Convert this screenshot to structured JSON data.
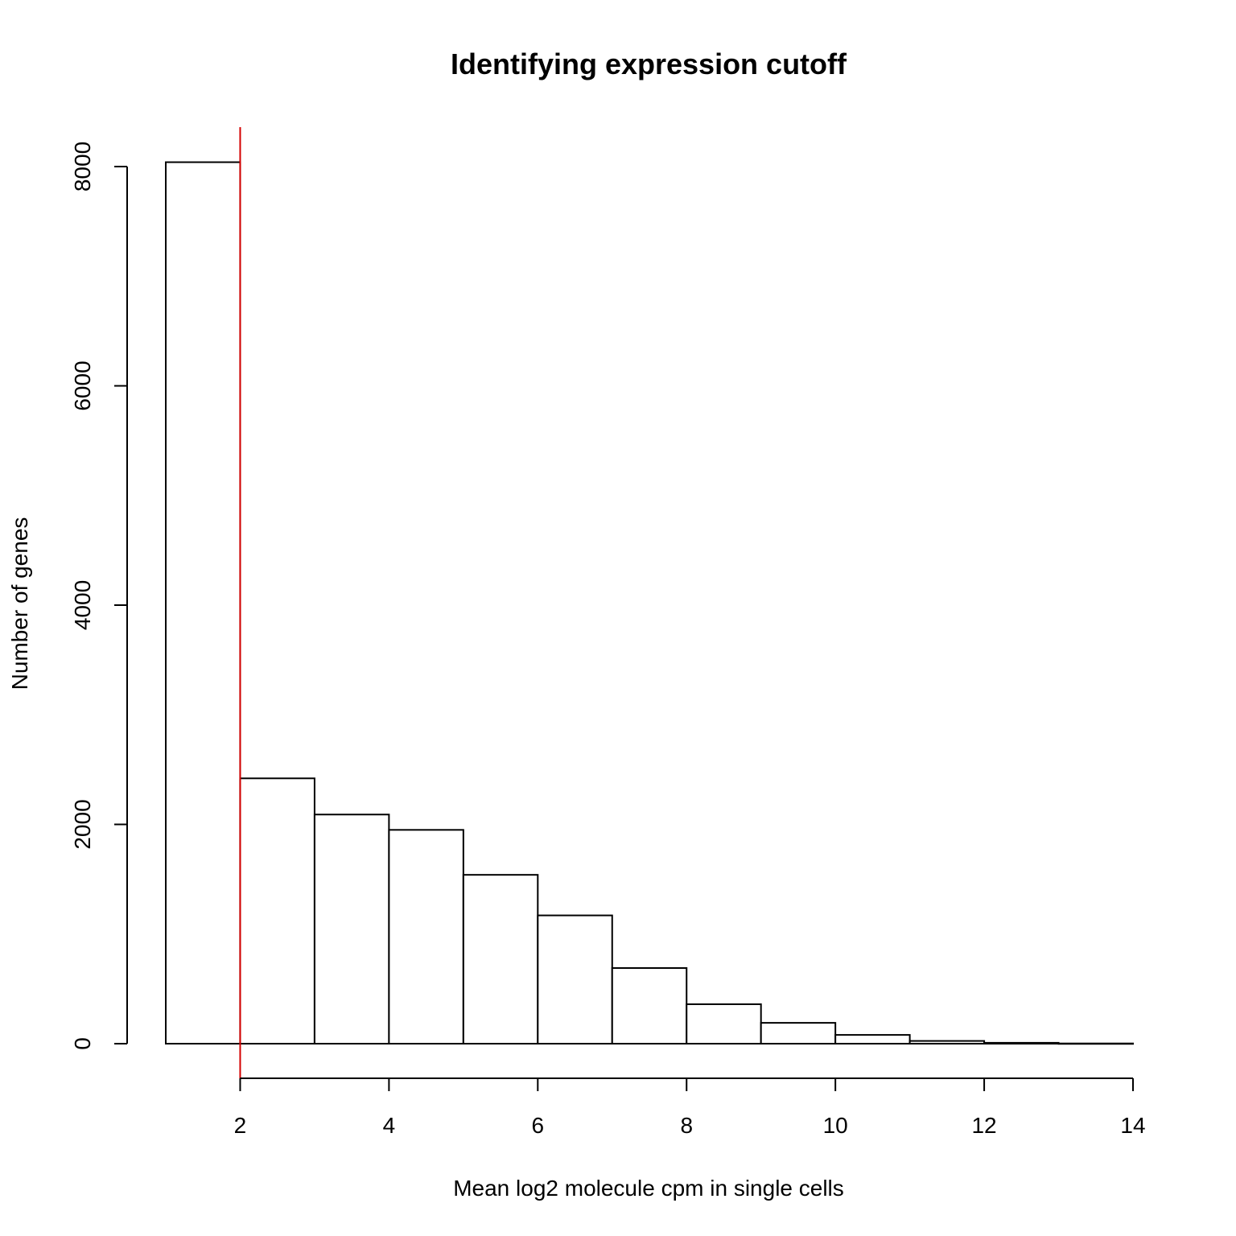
{
  "chart_data": {
    "type": "bar",
    "title": "Identifying expression cutoff",
    "xlabel": "Mean log2 molecule cpm in single cells",
    "ylabel": "Number of genes",
    "bins": [
      {
        "start": 1,
        "end": 2,
        "count": 8040
      },
      {
        "start": 2,
        "end": 3,
        "count": 2420
      },
      {
        "start": 3,
        "end": 4,
        "count": 2090
      },
      {
        "start": 4,
        "end": 5,
        "count": 1950
      },
      {
        "start": 5,
        "end": 6,
        "count": 1540
      },
      {
        "start": 6,
        "end": 7,
        "count": 1170
      },
      {
        "start": 7,
        "end": 8,
        "count": 690
      },
      {
        "start": 8,
        "end": 9,
        "count": 360
      },
      {
        "start": 9,
        "end": 10,
        "count": 190
      },
      {
        "start": 10,
        "end": 11,
        "count": 80
      },
      {
        "start": 11,
        "end": 12,
        "count": 25
      },
      {
        "start": 12,
        "end": 13,
        "count": 8
      },
      {
        "start": 13,
        "end": 14,
        "count": 2
      }
    ],
    "xticks": [
      2,
      4,
      6,
      8,
      10,
      12,
      14
    ],
    "yticks": [
      0,
      2000,
      4000,
      6000,
      8000
    ],
    "xlim": [
      1,
      14
    ],
    "ylim": [
      0,
      8000
    ],
    "cutoff_line": {
      "x": 2,
      "color": "#d40000"
    },
    "grid": false,
    "bar_fill": "#ffffff",
    "bar_stroke": "#000000"
  }
}
